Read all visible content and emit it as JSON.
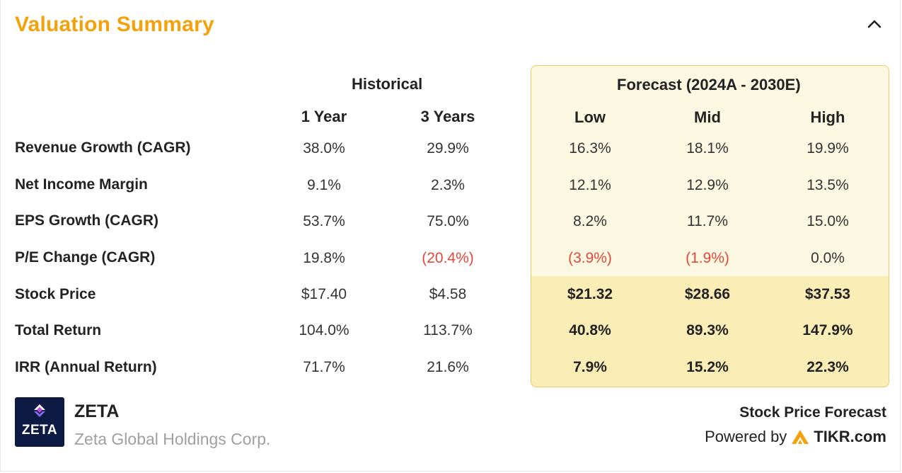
{
  "header": {
    "title": "Valuation Summary"
  },
  "colors": {
    "accent": "#f4a20c",
    "negative": "#e0483e",
    "forecast_bg": "#fdf8e2",
    "forecast_highlight": "#fbedb6",
    "forecast_border": "#eecb66"
  },
  "table": {
    "historical_label": "Historical",
    "forecast_label": "Forecast (2024A - 2030E)",
    "columns": [
      "1 Year",
      "3 Years",
      "Low",
      "Mid",
      "High"
    ],
    "rows": [
      {
        "label": "Revenue Growth (CAGR)",
        "values": [
          "38.0%",
          "29.9%",
          "16.3%",
          "18.1%",
          "19.9%"
        ]
      },
      {
        "label": "Net Income Margin",
        "values": [
          "9.1%",
          "2.3%",
          "12.1%",
          "12.9%",
          "13.5%"
        ]
      },
      {
        "label": "EPS Growth (CAGR)",
        "values": [
          "53.7%",
          "75.0%",
          "8.2%",
          "11.7%",
          "15.0%"
        ]
      },
      {
        "label": "P/E Change (CAGR)",
        "values": [
          "19.8%",
          "(20.4%)",
          "(3.9%)",
          "(1.9%)",
          "0.0%"
        ]
      },
      {
        "label": "Stock Price",
        "values": [
          "$17.40",
          "$4.58",
          "$21.32",
          "$28.66",
          "$37.53"
        ]
      },
      {
        "label": "Total Return",
        "values": [
          "104.0%",
          "113.7%",
          "40.8%",
          "89.3%",
          "147.9%"
        ]
      },
      {
        "label": "IRR (Annual Return)",
        "values": [
          "71.7%",
          "21.6%",
          "7.9%",
          "15.2%",
          "22.3%"
        ]
      }
    ]
  },
  "footer": {
    "logo_text": "ZETA",
    "ticker": "ZETA",
    "company": "Zeta Global Holdings Corp.",
    "stock_price_forecast": "Stock Price Forecast",
    "powered_by": "Powered by",
    "brand": "TIKR.com"
  }
}
